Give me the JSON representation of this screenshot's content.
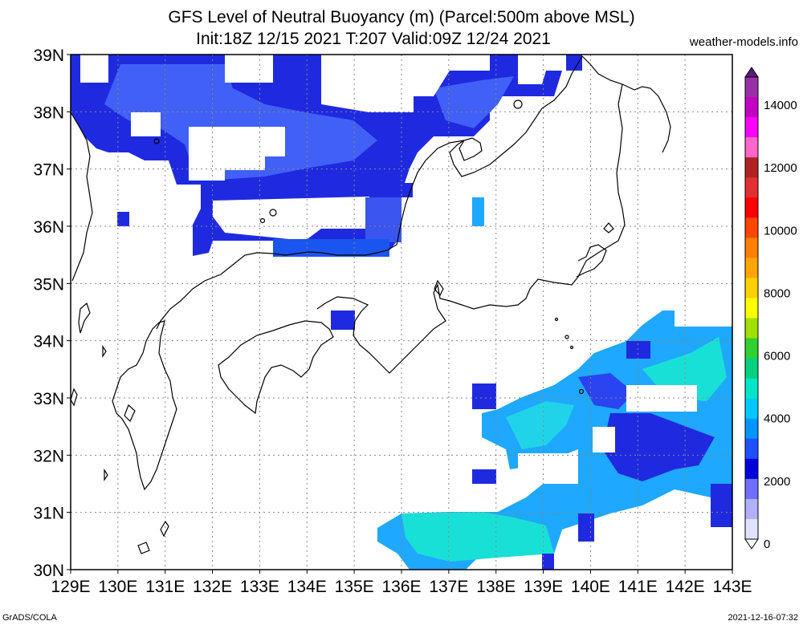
{
  "header": {
    "title_line1": "GFS Level of Neutral Buoyancy (m) (Parcel:500m above MSL)",
    "title_line2": "Init:18Z 12/15 2021 T:207 Valid:09Z 12/24 2021",
    "site": "weather-models.info"
  },
  "footer": {
    "left": "GrADS/COLA",
    "right": "2021-12-16-07:32"
  },
  "map": {
    "lon_labels": [
      "129E",
      "130E",
      "131E",
      "132E",
      "133E",
      "134E",
      "135E",
      "136E",
      "137E",
      "138E",
      "139E",
      "140E",
      "141E",
      "142E",
      "143E"
    ],
    "lat_labels": [
      "39N",
      "38N",
      "37N",
      "36N",
      "35N",
      "34N",
      "33N",
      "32N",
      "31N",
      "30N"
    ]
  },
  "colorbar": {
    "labels": [
      "14000",
      "12000",
      "10000",
      "8000",
      "6000",
      "4000",
      "2000",
      "0"
    ],
    "colors": [
      "#9b2fa8",
      "#c400c4",
      "#ff00ff",
      "#ff66cc",
      "#b22222",
      "#e03030",
      "#ff0000",
      "#ff4500",
      "#ff7f00",
      "#ffa500",
      "#ffd000",
      "#ffff00",
      "#a0e000",
      "#30d030",
      "#00d27f",
      "#00e6c8",
      "#00c8ff",
      "#0096ff",
      "#1e50ff",
      "#0000dd",
      "#6f6fff",
      "#b0b0ff",
      "#e0e0ff"
    ]
  },
  "colors": {
    "deep_blue": "#1f2ae0",
    "blue": "#3a5cff",
    "sky": "#1ea8ff",
    "cyan": "#19e0d6"
  }
}
